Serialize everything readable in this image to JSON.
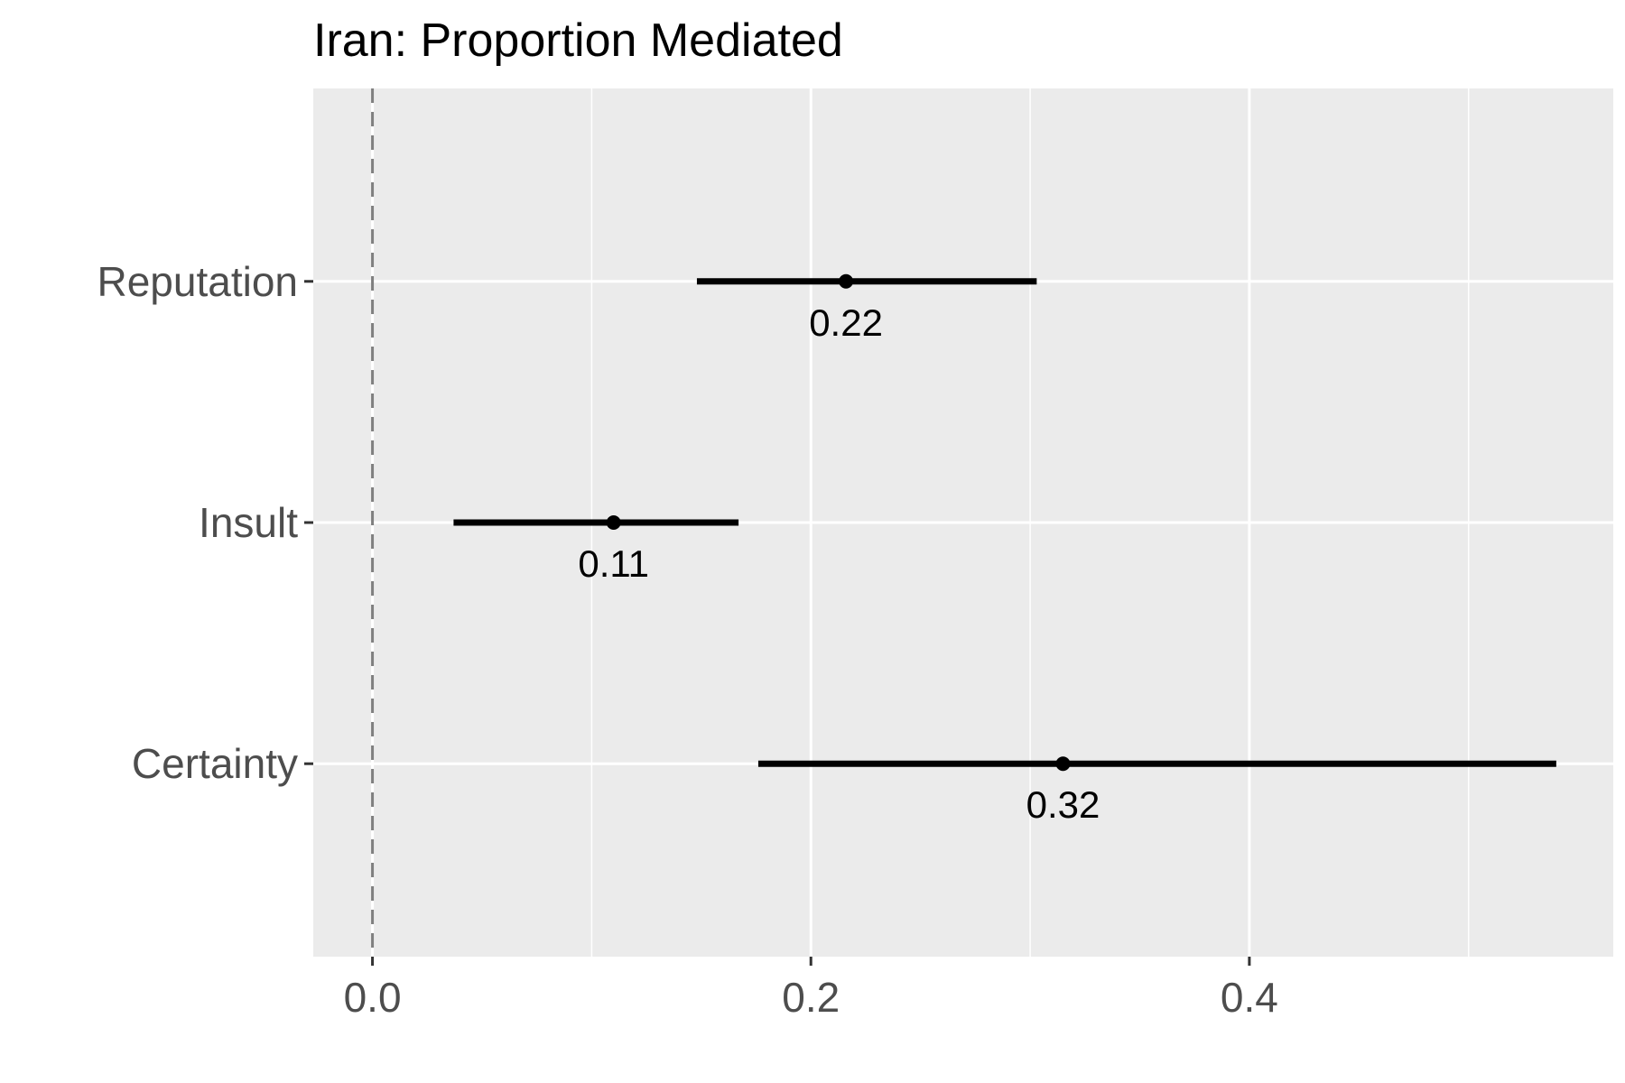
{
  "chart_data": {
    "type": "forest",
    "title": "Iran: Proportion Mediated",
    "xlabel": "",
    "ylabel": "",
    "categories": [
      "Reputation",
      "Insult",
      "Certainty"
    ],
    "estimates": [
      0.216,
      0.11,
      0.315
    ],
    "lower": [
      0.148,
      0.037,
      0.176
    ],
    "upper": [
      0.303,
      0.167,
      0.54
    ],
    "labels": [
      "0.22",
      "0.11",
      "0.32"
    ],
    "x_ticks": [
      0.0,
      0.2,
      0.4
    ],
    "x_tick_labels": [
      "0.0",
      "0.2",
      "0.4"
    ],
    "xlim": [
      -0.027,
      0.566
    ],
    "reference_line": 0,
    "reference_line_style": "dashed",
    "grid": true,
    "colors": {
      "panel": "#ebebeb",
      "grid": "#ffffff",
      "marks": "#000000",
      "reference": "#7f7f7f"
    }
  }
}
